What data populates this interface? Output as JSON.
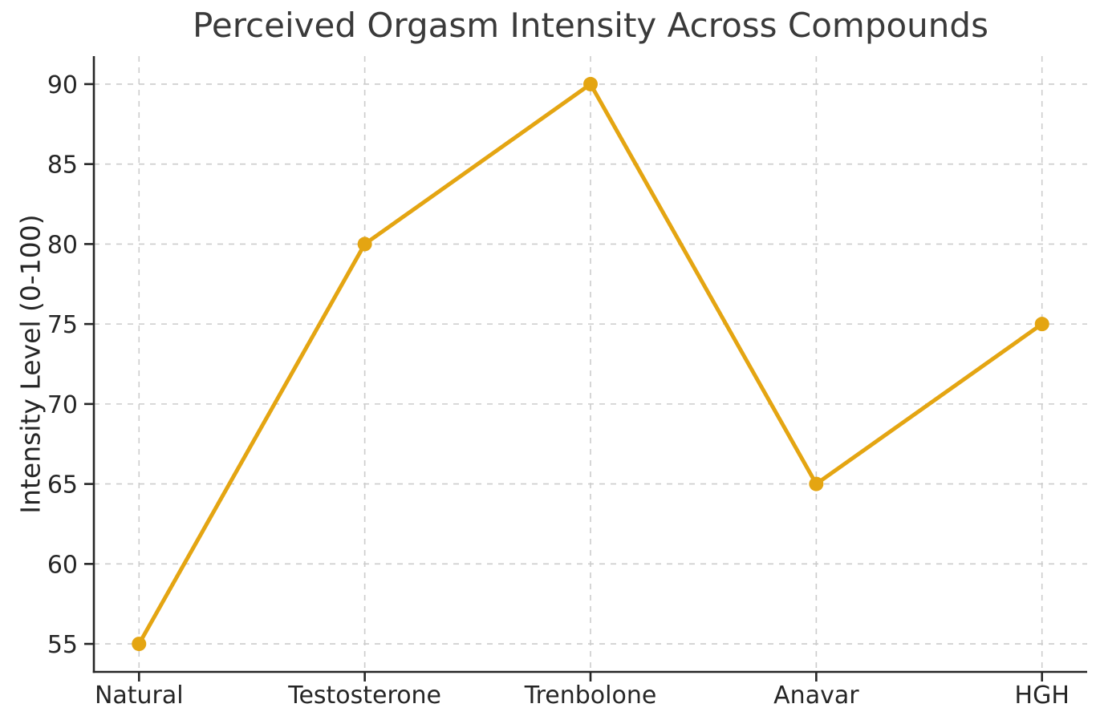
{
  "chart_data": {
    "type": "line",
    "title": "Perceived Orgasm Intensity Across Compounds",
    "xlabel": "",
    "ylabel": "Intensity Level (0-100)",
    "categories": [
      "Natural",
      "Testosterone",
      "Trenbolone",
      "Anavar",
      "HGH"
    ],
    "series": [
      {
        "name": "Perceived Orgasm Intensity",
        "values": [
          55,
          80,
          90,
          65,
          75
        ]
      }
    ],
    "yticks": [
      55,
      60,
      65,
      70,
      75,
      80,
      85,
      90
    ],
    "ylim": [
      53.25,
      91.75
    ],
    "grid": true,
    "grid_style": "dashed",
    "legend": false,
    "colors": {
      "line": "#E4A512",
      "marker": "#E4A512",
      "grid": "#cccccc",
      "axis": "#262626",
      "tick_text": "#262626",
      "title_text": "#3a3a3a"
    }
  }
}
